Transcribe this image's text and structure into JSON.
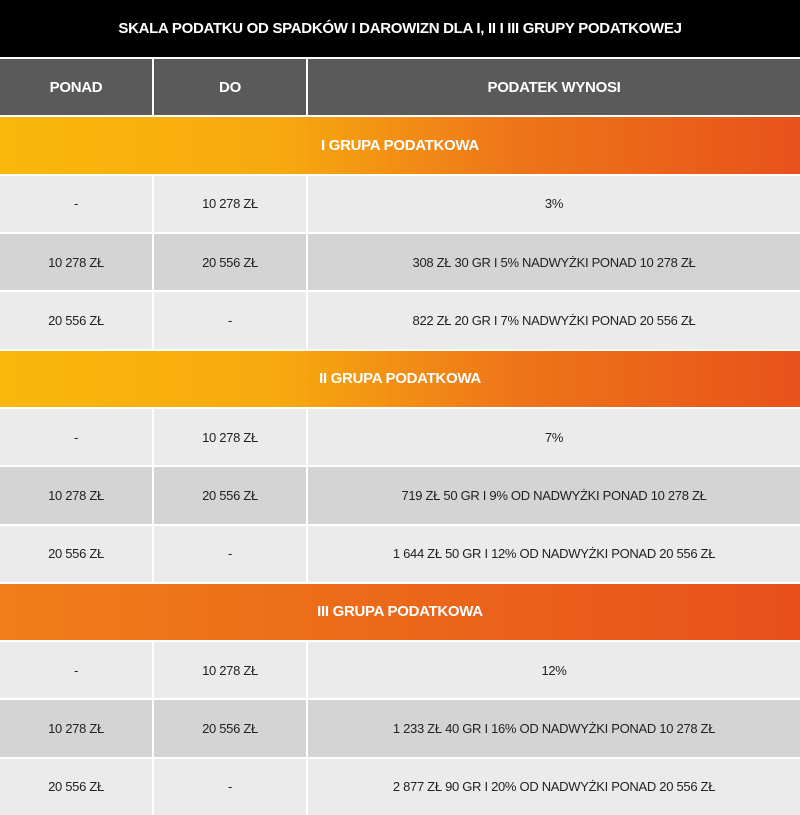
{
  "title": "SKALA PODATKU OD SPADKÓW I DAROWIZN DLA I, II I III GRUPY PODATKOWEJ",
  "headers": [
    "PONAD",
    "DO",
    "PODATEK WYNOSI"
  ],
  "colors": {
    "title_bg": "#000000",
    "header_bg": "#5a5a5a",
    "row_light": "#ebebeb",
    "row_dark": "#d4d4d4",
    "group_start": "#f9b80c",
    "group_end": "#e8521b"
  },
  "groups": [
    {
      "label": "I GRUPA PODATKOWA",
      "rows": [
        [
          "-",
          "10 278 ZŁ",
          "3%"
        ],
        [
          "10 278 ZŁ",
          "20 556 ZŁ",
          "308 ZŁ 30 GR I 5% NADWYŻKI PONAD 10 278 ZŁ"
        ],
        [
          "20 556 ZŁ",
          "-",
          "822 ZŁ 20 GR I 7% NADWYŻKI PONAD 20 556 ZŁ"
        ]
      ]
    },
    {
      "label": "II GRUPA PODATKOWA",
      "rows": [
        [
          "-",
          "10 278 ZŁ",
          "7%"
        ],
        [
          "10 278 ZŁ",
          "20 556 ZŁ",
          "719 ZŁ 50 GR I 9% OD NADWYŻKI PONAD 10 278 ZŁ"
        ],
        [
          "20 556 ZŁ",
          "-",
          "1 644 ZŁ 50 GR I 12% OD NADWYŻKI PONAD 20 556 ZŁ"
        ]
      ]
    },
    {
      "label": "III GRUPA PODATKOWA",
      "rows": [
        [
          "-",
          "10 278 ZŁ",
          "12%"
        ],
        [
          "10 278 ZŁ",
          "20 556 ZŁ",
          "1 233 ZŁ 40 GR I 16% OD NADWYŻKI PONAD 10 278 ZŁ"
        ],
        [
          "20 556 ZŁ",
          "-",
          "2 877 ZŁ 90 GR I 20% OD NADWYŻKI PONAD 20 556 ZŁ"
        ]
      ]
    }
  ]
}
